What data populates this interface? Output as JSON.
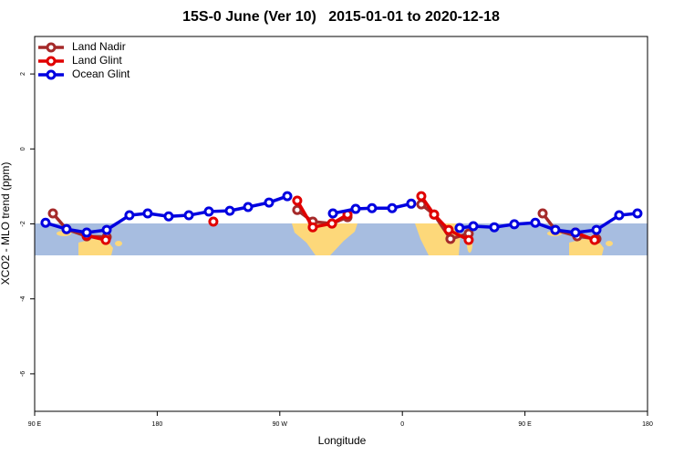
{
  "chart_data": {
    "type": "line",
    "title": "15S-0 June (Ver 10)   2015-01-01 to 2020-12-18",
    "x_label": "Longitude",
    "y_label": "XCO2 - MLO trend (ppm)",
    "xlim": [
      90,
      540
    ],
    "xticks": [
      {
        "value": 90,
        "label": "90 E"
      },
      {
        "value": 180,
        "label": "180"
      },
      {
        "value": 270,
        "label": "90 W"
      },
      {
        "value": 360,
        "label": "0"
      },
      {
        "value": 450,
        "label": "90 E"
      },
      {
        "value": 540,
        "label": "180"
      }
    ],
    "ylim": [
      -7,
      3
    ],
    "yticks": [
      2,
      0,
      -2,
      -4,
      -6
    ],
    "legend": "top-left",
    "series": [
      {
        "name": "Land Nadir",
        "color": "#a52a2a",
        "x": [
          103.4,
          113.4,
          128.2,
          142.9,
          null,
          282.8,
          294.2,
          308.3,
          319.7,
          null,
          373.9,
          383.3,
          395.3,
          408.7,
          null,
          463.0,
          472.3,
          488.4,
          502.5
        ],
        "values": [
          -1.72,
          -2.14,
          -2.33,
          -2.35,
          null,
          -1.63,
          -1.94,
          -1.99,
          -1.82,
          null,
          -1.48,
          -1.75,
          -2.4,
          -2.26,
          null,
          -1.72,
          -2.16,
          -2.33,
          -2.4
        ]
      },
      {
        "name": "Land Glint",
        "color": "#e00000",
        "x": [
          128.2,
          142.2,
          null,
          221.2,
          null,
          282.8,
          294.2,
          308.3,
          319.7,
          null,
          373.9,
          383.3,
          394.0,
          408.7,
          null,
          487.1,
          501.1
        ],
        "values": [
          -2.31,
          -2.43,
          null,
          -1.94,
          null,
          -1.38,
          -2.09,
          -1.99,
          -1.75,
          null,
          -1.26,
          -1.75,
          -2.16,
          -2.43,
          null,
          -2.23,
          -2.43
        ]
      },
      {
        "name": "Ocean Glint",
        "color": "#0000e0",
        "x": [
          98.0,
          113.4,
          128.2,
          142.9,
          159.6,
          173.0,
          188.4,
          203.2,
          217.9,
          233.3,
          246.7,
          262.1,
          275.5,
          null,
          309.0,
          325.7,
          337.7,
          352.5,
          366.5,
          null,
          402.0,
          412.1,
          427.5,
          442.2,
          457.6,
          472.3,
          487.1,
          502.5,
          519.2,
          532.6
        ],
        "values": [
          -1.97,
          -2.14,
          -2.23,
          -2.16,
          -1.77,
          -1.72,
          -1.8,
          -1.77,
          -1.67,
          -1.65,
          -1.55,
          -1.43,
          -1.26,
          null,
          -1.72,
          -1.6,
          -1.58,
          -1.58,
          -1.46,
          null,
          -2.11,
          -2.06,
          -2.09,
          -2.01,
          -1.97,
          -2.16,
          -2.23,
          -2.16,
          -1.77,
          -1.72
        ]
      }
    ]
  }
}
